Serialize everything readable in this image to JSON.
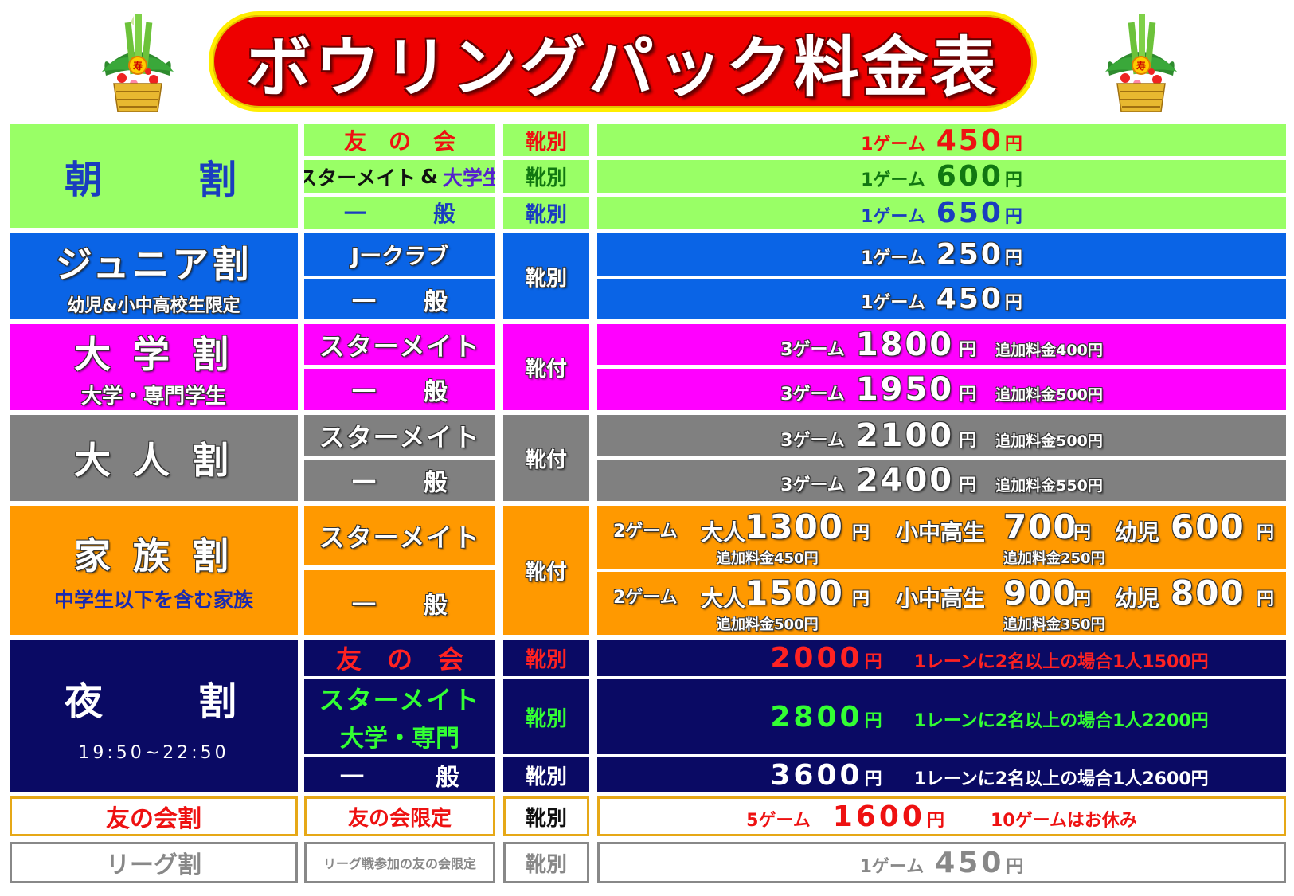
{
  "title": "ボウリングパック料金表",
  "decoration": "kadomatsu-icon",
  "colors": {
    "green": "#99ff66",
    "blue": "#0a64e6",
    "magenta": "#ff00ff",
    "gray": "#808080",
    "orange": "#ff9900",
    "navy": "#0a0a64",
    "red": "#ee0000",
    "gold": "#ffee00"
  },
  "asa": {
    "name": "朝　　割",
    "rows": [
      {
        "member": "友　の　会",
        "shoes": "靴別",
        "games": "1ゲーム",
        "price": "450",
        "yen": "円"
      },
      {
        "member_a": "スターメイト",
        "member_amp": "&",
        "member_b": "大学生",
        "shoes": "靴別",
        "games": "1ゲーム",
        "price": "600",
        "yen": "円"
      },
      {
        "member": "一　　　般",
        "shoes": "靴別",
        "games": "1ゲーム",
        "price": "650",
        "yen": "円"
      }
    ]
  },
  "junior": {
    "name": "ジュニア割",
    "sub": "幼児&小中高校生限定",
    "shoes": "靴別",
    "rows": [
      {
        "member": "Jークラブ",
        "games": "1ゲーム",
        "price": "250",
        "yen": "円"
      },
      {
        "member": "一　　般",
        "games": "1ゲーム",
        "price": "450",
        "yen": "円"
      }
    ]
  },
  "daigaku": {
    "name": "大 学 割",
    "sub": "大学・専門学生",
    "shoes": "靴付",
    "rows": [
      {
        "member": "スターメイト",
        "games": "3ゲーム",
        "price": "1800",
        "yen": "円",
        "extra": "追加料金400円"
      },
      {
        "member": "一　　般",
        "games": "3ゲーム",
        "price": "1950",
        "yen": "円",
        "extra": "追加料金500円"
      }
    ]
  },
  "otona": {
    "name": "大 人 割",
    "shoes": "靴付",
    "rows": [
      {
        "member": "スターメイト",
        "games": "3ゲーム",
        "price": "2100",
        "yen": "円",
        "extra": "追加料金500円"
      },
      {
        "member": "一　　般",
        "games": "3ゲーム",
        "price": "2400",
        "yen": "円",
        "extra": "追加料金550円"
      }
    ]
  },
  "kazoku": {
    "name": "家 族 割",
    "sub": "中学生以下を含む家族",
    "shoes": "靴付",
    "rows": [
      {
        "member": "スターメイト",
        "games": "2ゲーム",
        "adult_label": "大人",
        "adult_price": "1300",
        "yen": "円",
        "child_label": "小中高生",
        "child_price": "700",
        "infant_label": "幼児",
        "infant_price": "600",
        "extra_adult": "追加料金450円",
        "extra_child": "追加料金250円"
      },
      {
        "member": "一　　般",
        "games": "2ゲーム",
        "adult_label": "大人",
        "adult_price": "1500",
        "yen": "円",
        "child_label": "小中高生",
        "child_price": "900",
        "infant_label": "幼児",
        "infant_price": "800",
        "extra_adult": "追加料金500円",
        "extra_child": "追加料金350円"
      }
    ]
  },
  "yoru": {
    "name": "夜　　割",
    "time": "19:50~22:50",
    "rows": [
      {
        "member": "友　の　会",
        "shoes": "靴別",
        "price": "2000",
        "yen": "円",
        "note": "1レーンに2名以上の場合1人1500円"
      },
      {
        "member_1": "スターメイト",
        "member_2": "大学・専門",
        "shoes": "靴別",
        "price": "2800",
        "yen": "円",
        "note": "1レーンに2名以上の場合1人2200円"
      },
      {
        "member": "一　　　般",
        "shoes": "靴別",
        "price": "3600",
        "yen": "円",
        "note": "1レーンに2名以上の場合1人2600円"
      }
    ]
  },
  "tomo": {
    "name": "友の会割",
    "member": "友の会限定",
    "shoes": "靴別",
    "games": "5ゲーム",
    "price": "1600",
    "yen": "円",
    "note": "10ゲームはお休み"
  },
  "league": {
    "name": "リーグ割",
    "member": "リーグ戦参加の友の会限定",
    "shoes": "靴別",
    "games": "1ゲーム",
    "price": "450",
    "yen": "円"
  }
}
